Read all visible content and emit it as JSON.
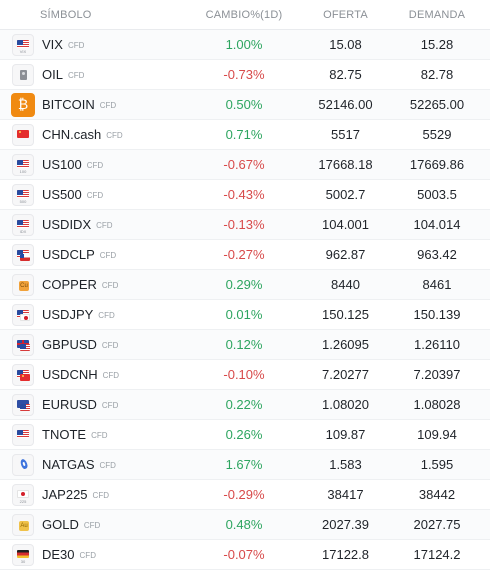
{
  "header": {
    "symbol": "SÍMBOLO",
    "change": "CAMBIO%(1D)",
    "bid": "OFERTA",
    "ask": "DEMANDA"
  },
  "rows": [
    {
      "symbol": "VIX",
      "type": "CFD",
      "change": "1.00%",
      "bid": "15.08",
      "ask": "15.28",
      "icon": "us-flag-icon",
      "iconText": "VIX"
    },
    {
      "symbol": "OIL",
      "type": "CFD",
      "change": "-0.73%",
      "bid": "82.75",
      "ask": "82.78",
      "icon": "oil-can-icon",
      "iconText": ""
    },
    {
      "symbol": "BITCOIN",
      "type": "CFD",
      "change": "0.50%",
      "bid": "52146.00",
      "ask": "52265.00",
      "icon": "bitcoin-icon",
      "iconText": "₿"
    },
    {
      "symbol": "CHN.cash",
      "type": "CFD",
      "change": "0.71%",
      "bid": "5517",
      "ask": "5529",
      "icon": "china-flag-icon",
      "iconText": ""
    },
    {
      "symbol": "US100",
      "type": "CFD",
      "change": "-0.67%",
      "bid": "17668.18",
      "ask": "17669.86",
      "icon": "us-flag-icon",
      "iconText": "100"
    },
    {
      "symbol": "US500",
      "type": "CFD",
      "change": "-0.43%",
      "bid": "5002.7",
      "ask": "5003.5",
      "icon": "us-flag-icon",
      "iconText": "500"
    },
    {
      "symbol": "USDIDX",
      "type": "CFD",
      "change": "-0.13%",
      "bid": "104.001",
      "ask": "104.014",
      "icon": "us-flag-icon",
      "iconText": "IDX"
    },
    {
      "symbol": "USDCLP",
      "type": "CFD",
      "change": "-0.27%",
      "bid": "962.87",
      "ask": "963.42",
      "icon": "us-chile-flags-icon",
      "iconText": ""
    },
    {
      "symbol": "COPPER",
      "type": "CFD",
      "change": "0.29%",
      "bid": "8440",
      "ask": "8461",
      "icon": "copper-icon",
      "iconText": "Cu"
    },
    {
      "symbol": "USDJPY",
      "type": "CFD",
      "change": "0.01%",
      "bid": "150.125",
      "ask": "150.139",
      "icon": "us-japan-flags-icon",
      "iconText": ""
    },
    {
      "symbol": "GBPUSD",
      "type": "CFD",
      "change": "0.12%",
      "bid": "1.26095",
      "ask": "1.26110",
      "icon": "uk-us-flags-icon",
      "iconText": ""
    },
    {
      "symbol": "USDCNH",
      "type": "CFD",
      "change": "-0.10%",
      "bid": "7.20277",
      "ask": "7.20397",
      "icon": "us-china-flags-icon",
      "iconText": ""
    },
    {
      "symbol": "EURUSD",
      "type": "CFD",
      "change": "0.22%",
      "bid": "1.08020",
      "ask": "1.08028",
      "icon": "eu-us-flags-icon",
      "iconText": ""
    },
    {
      "symbol": "TNOTE",
      "type": "CFD",
      "change": "0.26%",
      "bid": "109.87",
      "ask": "109.94",
      "icon": "us-flag-icon",
      "iconText": ""
    },
    {
      "symbol": "NATGAS",
      "type": "CFD",
      "change": "1.67%",
      "bid": "1.583",
      "ask": "1.595",
      "icon": "gas-flame-icon",
      "iconText": ""
    },
    {
      "symbol": "JAP225",
      "type": "CFD",
      "change": "-0.29%",
      "bid": "38417",
      "ask": "38442",
      "icon": "japan-flag-icon",
      "iconText": "225"
    },
    {
      "symbol": "GOLD",
      "type": "CFD",
      "change": "0.48%",
      "bid": "2027.39",
      "ask": "2027.75",
      "icon": "gold-icon",
      "iconText": "Au"
    },
    {
      "symbol": "DE30",
      "type": "CFD",
      "change": "-0.07%",
      "bid": "17122.8",
      "ask": "17124.2",
      "icon": "germany-flag-icon",
      "iconText": "30"
    }
  ],
  "colors": {
    "positive": "#2ea560",
    "negative": "#d84a4a",
    "text": "#1d2228",
    "muted": "#9aa0a6",
    "bitcoin": "#f08a12"
  }
}
